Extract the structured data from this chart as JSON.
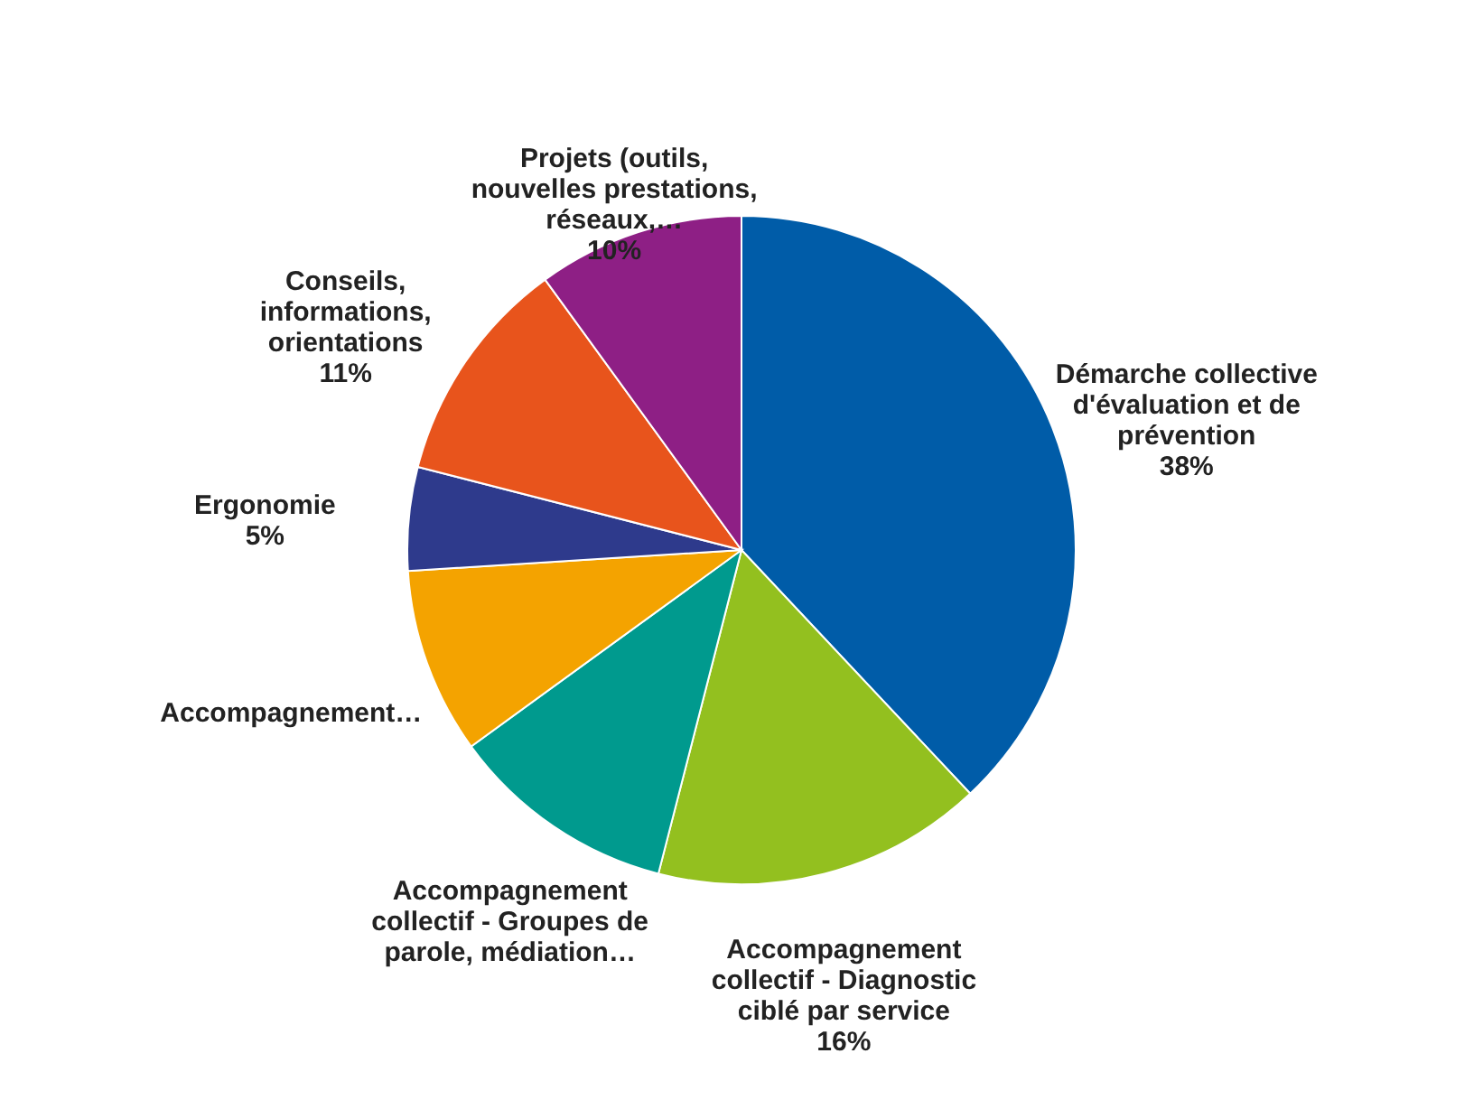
{
  "chart_data": {
    "type": "pie",
    "categories": [
      "Démarche collective d'évaluation et de prévention",
      "Accompagnement collectif - Diagnostic ciblé par service",
      "Accompagnement collectif - Groupes de parole, médiation…",
      "Accompagnement…",
      "Ergonomie",
      "Conseils, informations, orientations",
      "Projets (outils, nouvelles prestations, réseaux,…"
    ],
    "values": [
      38,
      16,
      11,
      9,
      5,
      11,
      10
    ],
    "value_labels": [
      "38%",
      "16%",
      null,
      null,
      "5%",
      "11%",
      "10%"
    ],
    "colors": [
      "#005ca8",
      "#93c01f",
      "#009a8e",
      "#f4a300",
      "#2e3a8c",
      "#e8541c",
      "#8e1f85"
    ],
    "legend": false
  }
}
